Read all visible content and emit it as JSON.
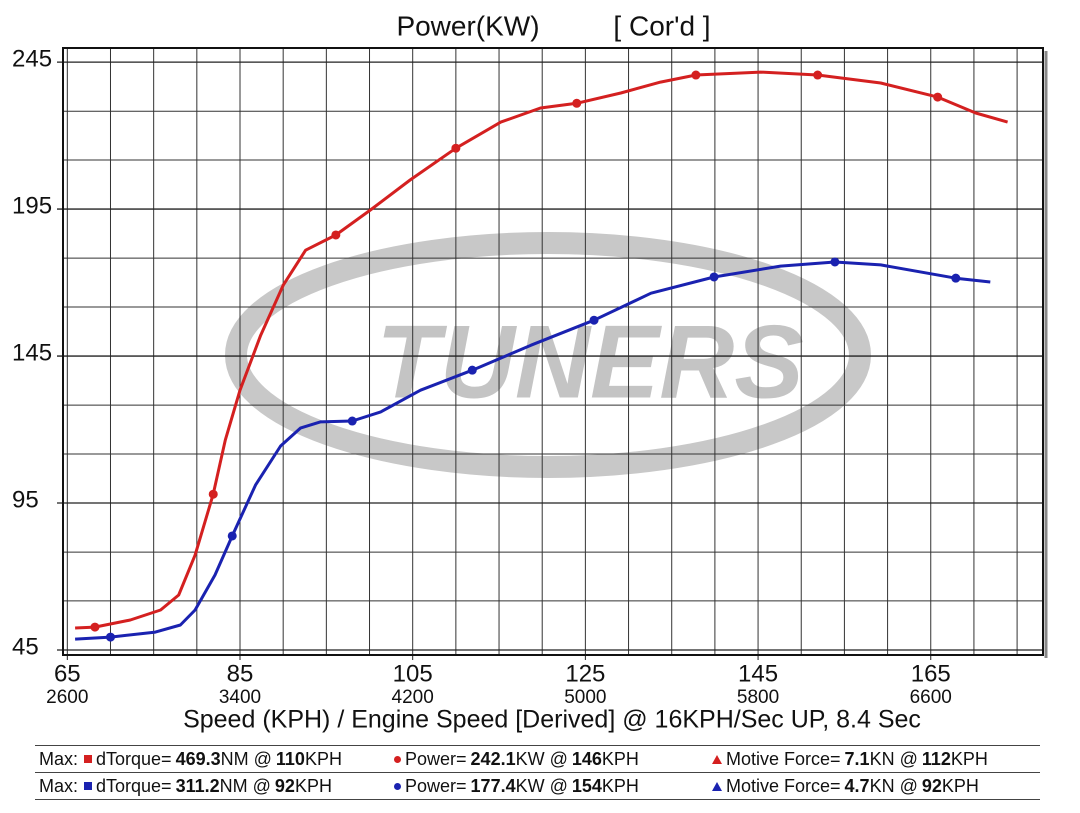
{
  "chart_data": {
    "type": "line",
    "title": "Power(KW)",
    "subtitle": "[ Cor'd ]",
    "x_label": "Speed (KPH) / Engine Speed [Derived] @ 16KPH/Sec UP, 8.4 Sec",
    "watermark": "TUNERS",
    "xlim": [
      64.5,
      178
    ],
    "ylim": [
      43.3,
      249.8
    ],
    "xticks": [
      65,
      85,
      105,
      125,
      145,
      165
    ],
    "x2ticks": [
      {
        "value": 65,
        "label": "2600"
      },
      {
        "value": 85,
        "label": "3400"
      },
      {
        "value": 105,
        "label": "4200"
      },
      {
        "value": 125,
        "label": "5000"
      },
      {
        "value": 145,
        "label": "5800"
      },
      {
        "value": 165,
        "label": "6600"
      }
    ],
    "yticks": [
      45,
      95,
      145,
      195,
      245
    ],
    "xgrid": [
      65,
      70,
      75,
      80,
      85,
      90,
      95,
      100,
      105,
      110,
      115,
      120,
      125,
      130,
      135,
      140,
      145,
      150,
      155,
      160,
      165,
      170,
      175
    ],
    "ygrid": [
      61.7,
      78.3,
      111.7,
      128.3,
      161.7,
      178.3,
      211.7,
      228.3
    ],
    "grid": true,
    "series": [
      {
        "color": "#d42020",
        "x": [
          65.9,
          68.2,
          72.3,
          75.8,
          77.9,
          79.8,
          81.9,
          83.3,
          85,
          87.4,
          90,
          92.6,
          96.1,
          100.1,
          104.7,
          110,
          115.2,
          119.8,
          124,
          129.1,
          133.7,
          137.8,
          145.3,
          151.9,
          159.2,
          165.8,
          170.2,
          173.9
        ],
        "values": [
          52.5,
          52.8,
          55.2,
          58.6,
          63.7,
          77.3,
          98,
          116.4,
          133.4,
          152.1,
          169.1,
          181,
          186.2,
          194.7,
          204.9,
          215.7,
          224.6,
          229.4,
          231,
          234.5,
          238.2,
          240.6,
          241.6,
          240.6,
          237.9,
          233.1,
          227.7,
          224.6
        ],
        "markers": [
          1,
          6,
          12,
          15,
          18,
          21,
          23,
          25
        ]
      },
      {
        "color": "#1a22b0",
        "x": [
          65.9,
          70,
          75.2,
          78.1,
          79.8,
          82.1,
          84.1,
          86.8,
          89.7,
          92,
          94.3,
          98,
          101.3,
          105.9,
          111.9,
          118.7,
          126,
          132.6,
          139.9,
          147.6,
          153.9,
          159.2,
          167.9,
          171.9
        ],
        "values": [
          48.7,
          49.4,
          51.1,
          53.5,
          58.6,
          70.5,
          83.8,
          101.1,
          114.4,
          120.5,
          122.6,
          122.9,
          126,
          133.4,
          140.2,
          148.7,
          157.2,
          166.4,
          171.9,
          175.6,
          177,
          176,
          171.5,
          170.2
        ],
        "markers": [
          1,
          6,
          11,
          14,
          16,
          18,
          20,
          22
        ]
      }
    ],
    "stats": [
      {
        "label": "Max:",
        "color": "#d42020",
        "items": [
          {
            "symbol": "square",
            "name": "dTorque=",
            "value": 469.3,
            "unit": "NM @",
            "speed": 110,
            "speed_unit": "KPH"
          },
          {
            "symbol": "circle",
            "name": "Power=",
            "value": 242.1,
            "unit": "KW @",
            "speed": 146,
            "speed_unit": "KPH"
          },
          {
            "symbol": "triangle",
            "name": "Motive Force=",
            "value": 7.1,
            "unit": "KN @",
            "speed": 112,
            "speed_unit": "KPH"
          }
        ]
      },
      {
        "label": "Max:",
        "color": "#1a22b0",
        "items": [
          {
            "symbol": "square",
            "name": "dTorque=",
            "value": 311.2,
            "unit": "NM @",
            "speed": 92,
            "speed_unit": "KPH"
          },
          {
            "symbol": "circle",
            "name": "Power=",
            "value": 177.4,
            "unit": "KW @",
            "speed": 154,
            "speed_unit": "KPH"
          },
          {
            "symbol": "triangle",
            "name": "Motive Force=",
            "value": 4.7,
            "unit": "KN @",
            "speed": 92,
            "speed_unit": "KPH"
          }
        ]
      }
    ]
  }
}
